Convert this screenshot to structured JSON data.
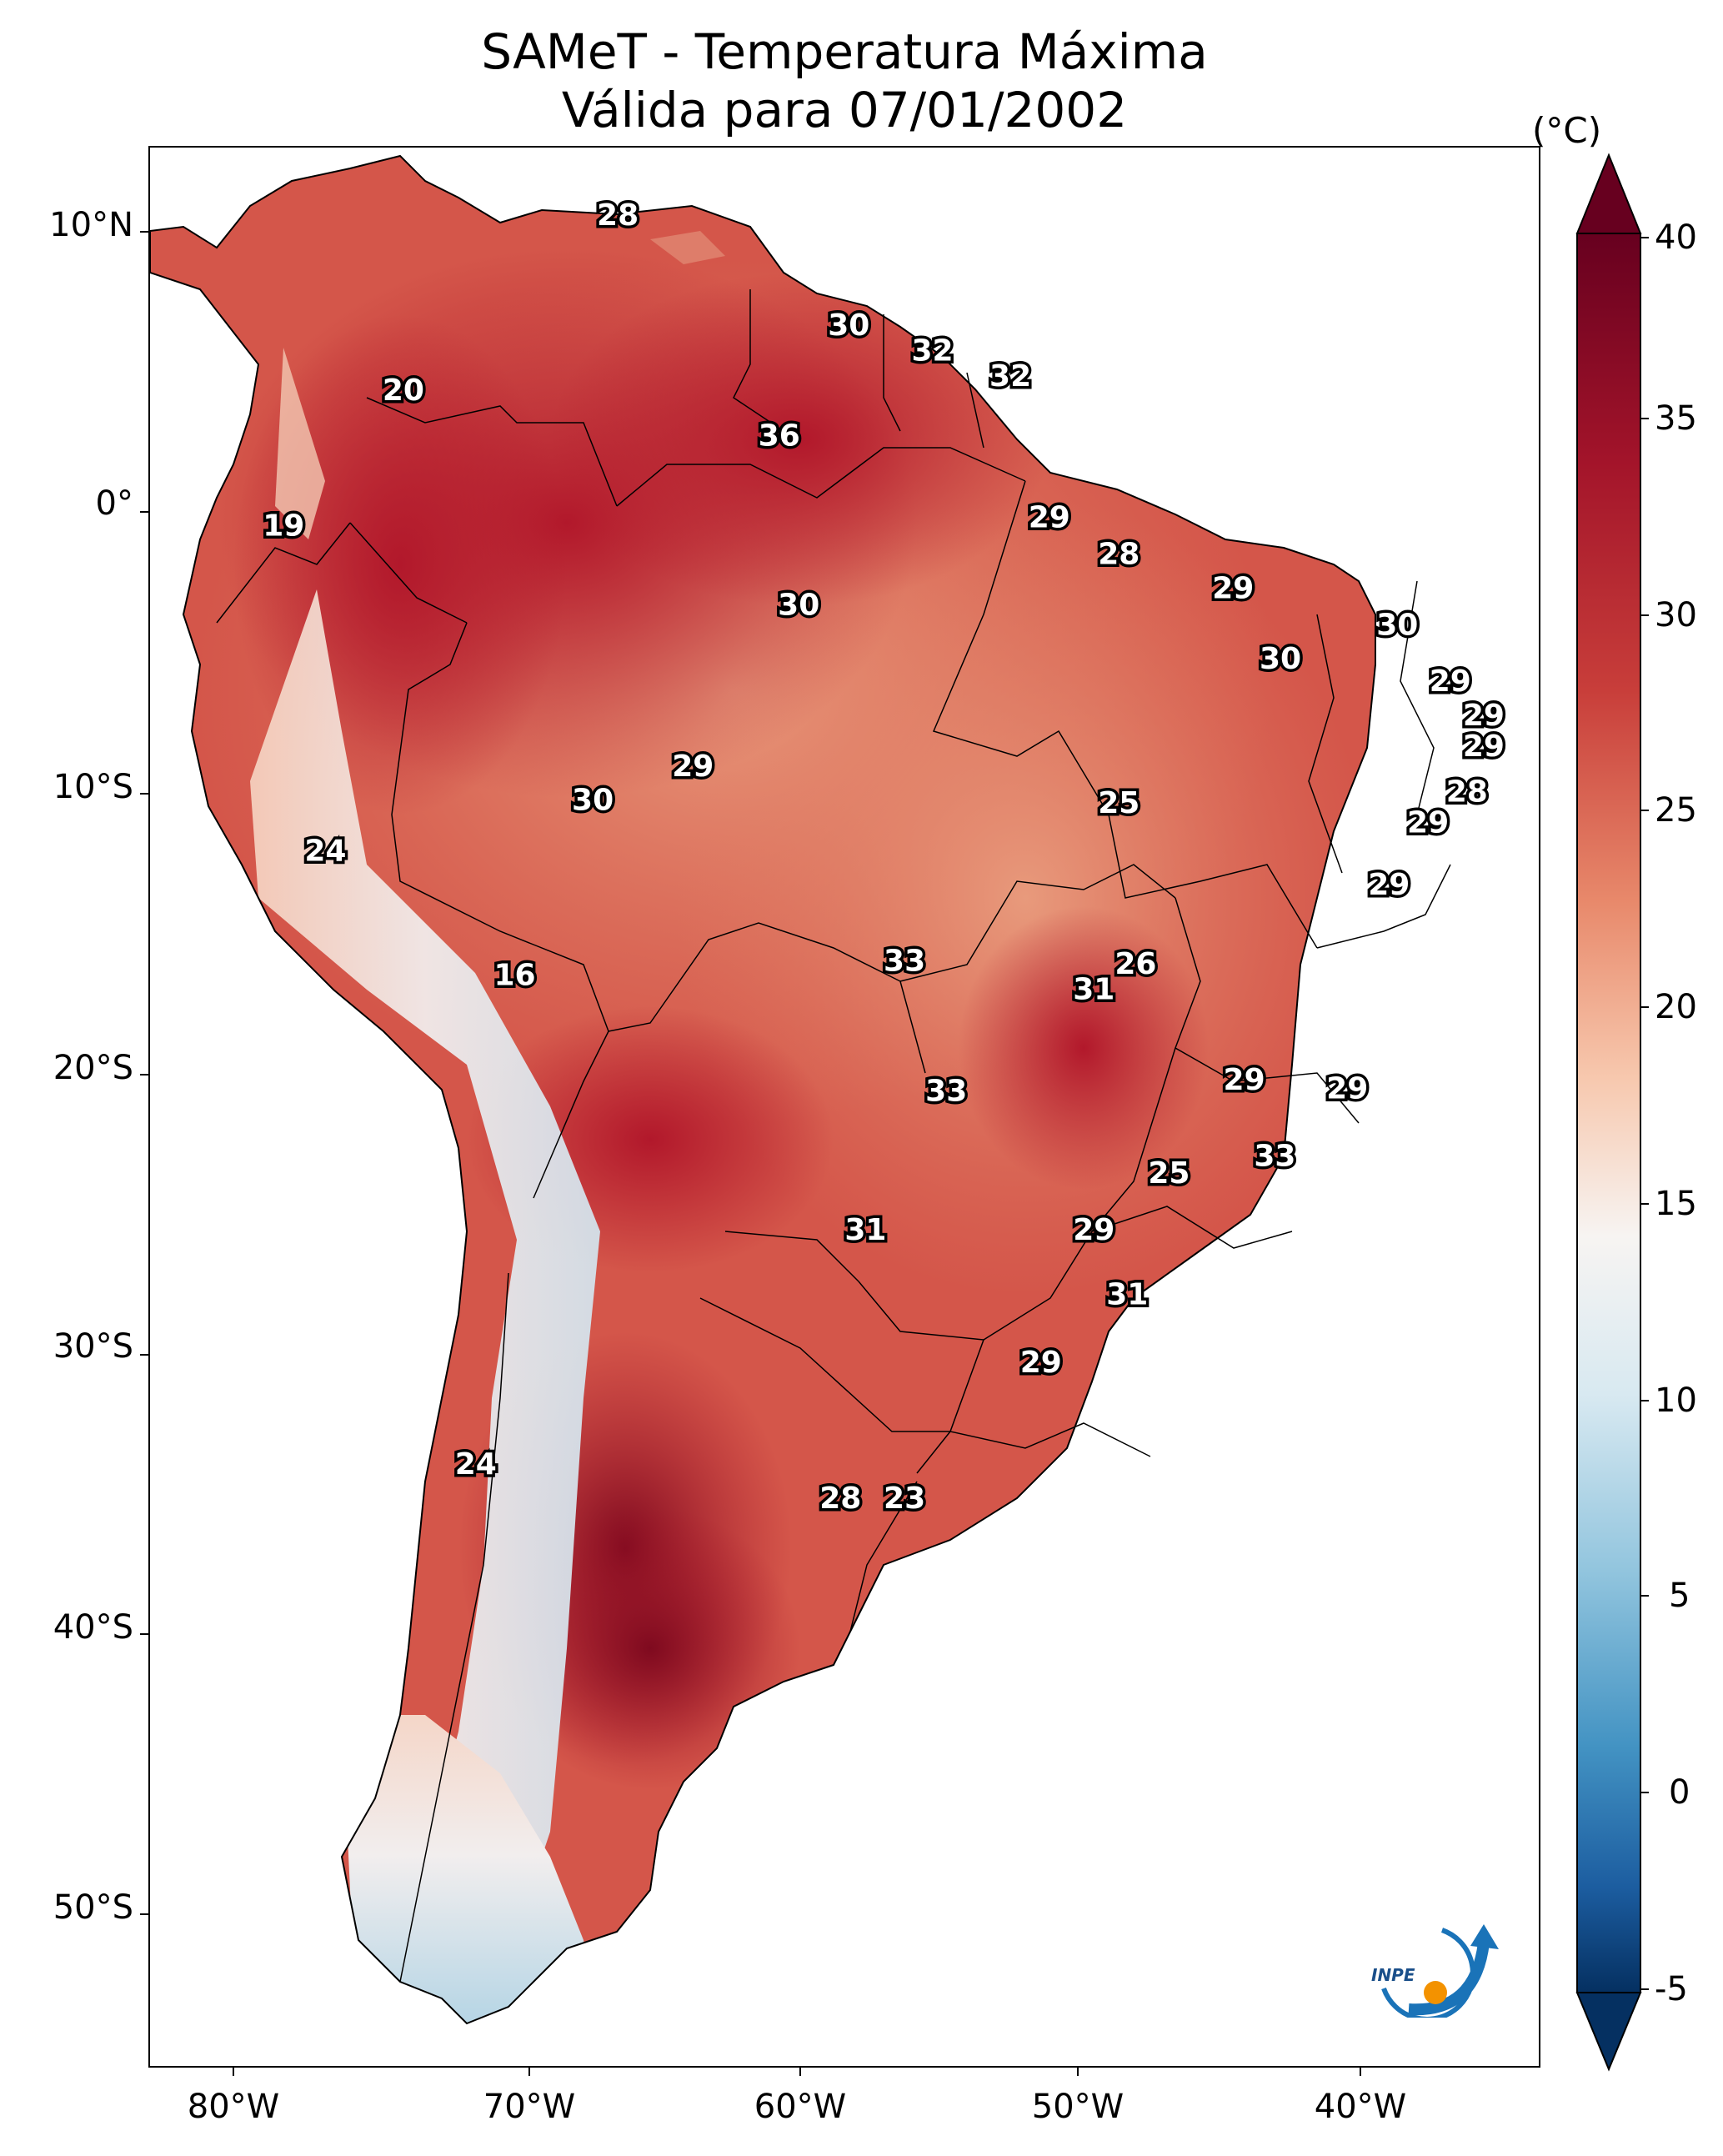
{
  "title": {
    "line1": "SAMeT - Temperatura Máxima",
    "line2": "Válida para 07/01/2002"
  },
  "colorbar": {
    "unit": "(°C)",
    "ticks": [
      "40",
      "35",
      "30",
      "25",
      "20",
      "15",
      "10",
      "5",
      "0",
      "-5"
    ],
    "min": -7,
    "max": 40,
    "colors": {
      "max": "#67001f",
      "high": "#b2182b",
      "mid_high": "#e8896b",
      "neutral": "#f7f7f7",
      "mid_low": "#92c5de",
      "low": "#2166ac",
      "min": "#053061"
    }
  },
  "map": {
    "lat_labels": [
      "10°N",
      "0°",
      "10°S",
      "20°S",
      "30°S",
      "40°S",
      "50°S"
    ],
    "lon_labels": [
      "80°W",
      "70°W",
      "60°W",
      "50°W",
      "40°W"
    ],
    "lon_range": [
      -83,
      -33
    ],
    "lat_range": [
      13,
      -55
    ],
    "values": [
      {
        "text": "28",
        "lon": -66.2,
        "lat": 10.6
      },
      {
        "text": "20",
        "lon": -73.9,
        "lat": 4.4
      },
      {
        "text": "30",
        "lon": -57.9,
        "lat": 6.7
      },
      {
        "text": "32",
        "lon": -54.9,
        "lat": 5.8
      },
      {
        "text": "32",
        "lon": -52.1,
        "lat": 4.9
      },
      {
        "text": "36",
        "lon": -60.4,
        "lat": 2.8
      },
      {
        "text": "19",
        "lon": -78.2,
        "lat": -0.4
      },
      {
        "text": "29",
        "lon": -50.7,
        "lat": -0.1
      },
      {
        "text": "28",
        "lon": -48.2,
        "lat": -1.4
      },
      {
        "text": "29",
        "lon": -44.1,
        "lat": -2.6
      },
      {
        "text": "30",
        "lon": -59.7,
        "lat": -3.2
      },
      {
        "text": "30",
        "lon": -38.2,
        "lat": -3.9
      },
      {
        "text": "30",
        "lon": -42.4,
        "lat": -5.1
      },
      {
        "text": "29",
        "lon": -36.3,
        "lat": -5.9
      },
      {
        "text": "29",
        "lon": -35.1,
        "lat": -7.1
      },
      {
        "text": "29",
        "lon": -35.1,
        "lat": -8.2
      },
      {
        "text": "29",
        "lon": -63.5,
        "lat": -8.9
      },
      {
        "text": "28",
        "lon": -35.7,
        "lat": -9.8
      },
      {
        "text": "30",
        "lon": -67.1,
        "lat": -10.1
      },
      {
        "text": "25",
        "lon": -48.2,
        "lat": -10.2
      },
      {
        "text": "29",
        "lon": -37.1,
        "lat": -10.9
      },
      {
        "text": "24",
        "lon": -76.7,
        "lat": -11.9
      },
      {
        "text": "29",
        "lon": -38.5,
        "lat": -13.1
      },
      {
        "text": "33",
        "lon": -55.9,
        "lat": -15.8
      },
      {
        "text": "26",
        "lon": -47.6,
        "lat": -15.9
      },
      {
        "text": "16",
        "lon": -69.9,
        "lat": -16.3
      },
      {
        "text": "31",
        "lon": -49.1,
        "lat": -16.8
      },
      {
        "text": "29",
        "lon": -43.7,
        "lat": -20.0
      },
      {
        "text": "33",
        "lon": -54.4,
        "lat": -20.4
      },
      {
        "text": "29",
        "lon": -40.0,
        "lat": -20.3
      },
      {
        "text": "33",
        "lon": -42.6,
        "lat": -22.7
      },
      {
        "text": "25",
        "lon": -46.4,
        "lat": -23.3
      },
      {
        "text": "31",
        "lon": -57.3,
        "lat": -25.3
      },
      {
        "text": "29",
        "lon": -49.1,
        "lat": -25.3
      },
      {
        "text": "31",
        "lon": -47.9,
        "lat": -27.6
      },
      {
        "text": "29",
        "lon": -51.0,
        "lat": -30.0
      },
      {
        "text": "24",
        "lon": -71.3,
        "lat": -33.6
      },
      {
        "text": "28",
        "lon": -58.2,
        "lat": -34.8
      },
      {
        "text": "23",
        "lon": -55.9,
        "lat": -34.8
      }
    ]
  },
  "logo": {
    "text": "INPE"
  }
}
